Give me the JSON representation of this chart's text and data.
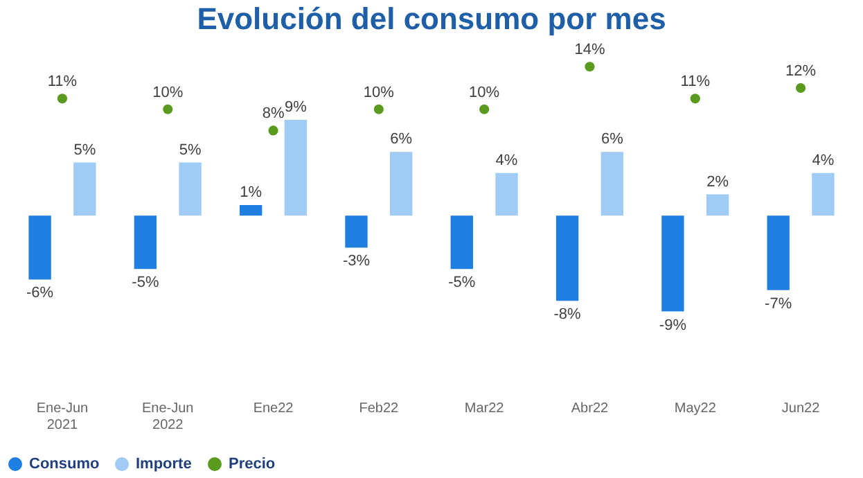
{
  "chart_data": {
    "type": "bar",
    "title": "Evolución del consumo por mes",
    "categories": [
      "Ene-Jun 2021",
      "Ene-Jun 2022",
      "Ene22",
      "Feb22",
      "Mar22",
      "Abr22",
      "May22",
      "Jun22"
    ],
    "series": [
      {
        "name": "Consumo",
        "color": "#1f7fe0",
        "values": [
          -6,
          -5,
          1,
          -3,
          -5,
          -8,
          -9,
          -7
        ],
        "value_labels": [
          "-6%",
          "-5%",
          "1%",
          "-3%",
          "-5%",
          "-8%",
          "-9%",
          "-7%"
        ]
      },
      {
        "name": "Importe",
        "color": "#9fcbf5",
        "values": [
          5,
          5,
          9,
          6,
          4,
          6,
          2,
          4
        ],
        "value_labels": [
          "5%",
          "5%",
          "9%",
          "6%",
          "4%",
          "6%",
          "2%",
          "4%"
        ]
      },
      {
        "name": "Precio",
        "type": "scatter",
        "color": "#5a9a1e",
        "values": [
          11,
          10,
          8,
          10,
          10,
          14,
          11,
          12
        ],
        "value_labels": [
          "11%",
          "10%",
          "8%",
          "10%",
          "10%",
          "14%",
          "11%",
          "12%"
        ]
      }
    ],
    "marker": "circle",
    "grid": false,
    "legend": "bottom",
    "tick_labels": "x"
  }
}
